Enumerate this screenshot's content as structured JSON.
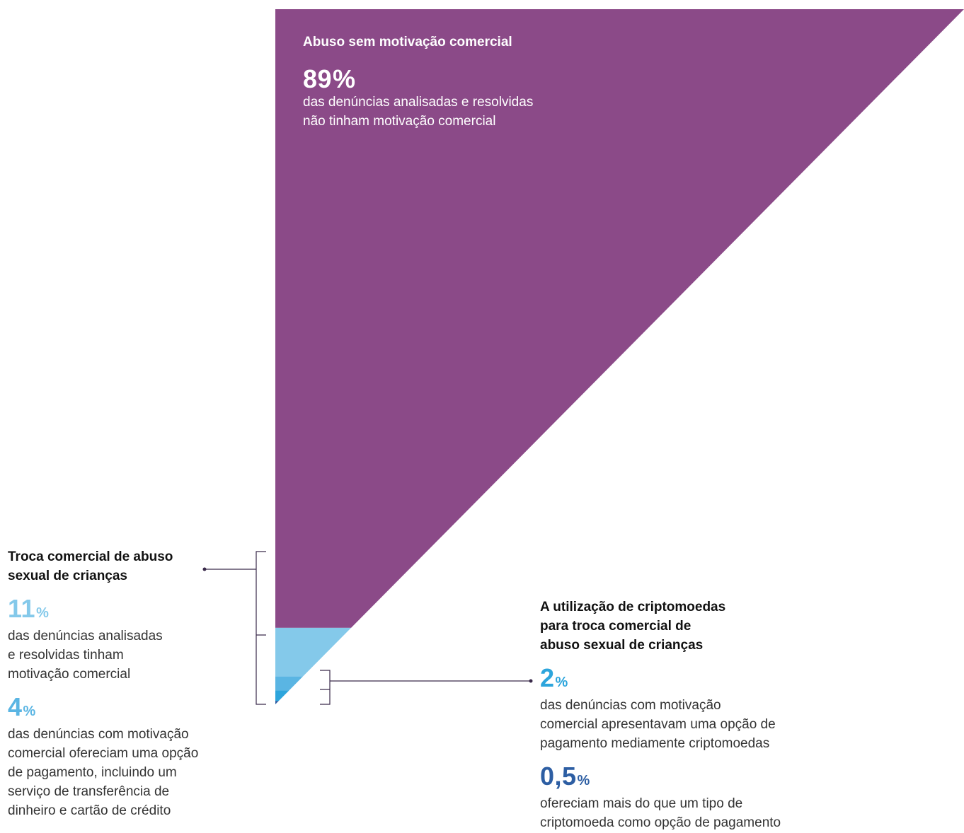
{
  "colors": {
    "purple": "#8b4a88",
    "light_blue": "#84c9ea",
    "mid_blue": "#5ab5e3",
    "bright_blue": "#2da5dc",
    "navy": "#2d5ea3",
    "bracket": "#3a2a4a",
    "text_dark": "#111111",
    "text_body": "#333333",
    "white": "#ffffff"
  },
  "chart_data": {
    "type": "area",
    "title": "",
    "segments": [
      {
        "name": "Abuso sem motivação comercial",
        "value": 89,
        "color": "#8b4a88"
      },
      {
        "name": "Troca comercial de abuso sexual de crianças",
        "value": 11,
        "color": "#84c9ea"
      },
      {
        "name": "Opção de pagamento, incluindo serviço de transferência de dinheiro e cartão de crédito",
        "value": 4,
        "color": "#5ab5e3"
      },
      {
        "name": "Opção de pagamento mediamente criptomoedas",
        "value": 2,
        "color": "#2da5dc"
      },
      {
        "name": "Mais do que um tipo de criptomoeda",
        "value": 0.5,
        "color": "#2d5ea3"
      }
    ]
  },
  "panels": {
    "top": {
      "heading": "Abuso sem motivação comercial",
      "value": "89",
      "unit": "%",
      "description": "das denúncias analisadas e resolvidas\nnão tinham motivação comercial",
      "value_color": "#ffffff"
    },
    "left": {
      "heading": "Troca comercial de abuso\nsexual de crianças",
      "stats": [
        {
          "value": "11",
          "unit": "%",
          "color": "#84c9ea",
          "description": "das denúncias analisadas\ne resolvidas tinham\nmotivação comercial"
        },
        {
          "value": "4",
          "unit": "%",
          "color": "#5ab5e3",
          "description": "das denúncias com motivação\ncomercial ofereciam uma opção\nde pagamento, incluindo um\nserviço de transferência de\ndinheiro e cartão de crédito"
        }
      ]
    },
    "right": {
      "heading": "A utilização de criptomoedas\npara troca comercial de\nabuso sexual de crianças",
      "stats": [
        {
          "value": "2",
          "unit": "%",
          "color": "#2da5dc",
          "description": "das denúncias com motivação\ncomercial apresentavam uma opção de\npagamento mediamente criptomoedas"
        },
        {
          "value": "0,5",
          "unit": "%",
          "color": "#2d5ea3",
          "description": "ofereciam mais do que um tipo de\ncriptomoeda como opção de pagamento"
        }
      ]
    }
  }
}
